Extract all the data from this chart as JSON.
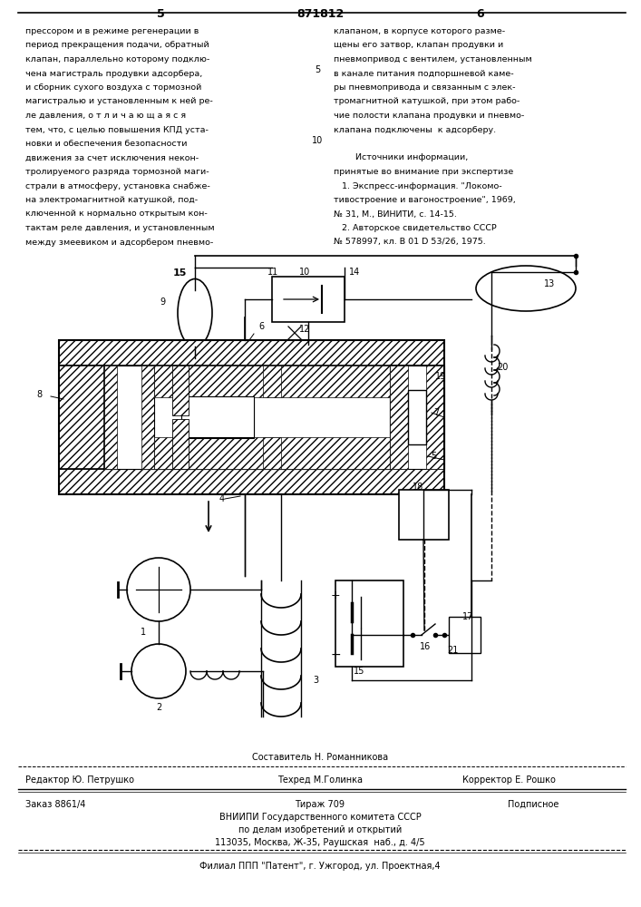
{
  "page_color": "#ffffff",
  "header_num_left": "5",
  "header_num_center": "871812",
  "header_num_right": "6",
  "col_left_text": [
    "прессором и в режиме регенерации в",
    "период прекращения подачи, обратный",
    "клапан, параллельно которому подклю-",
    "чена магистраль продувки адсорбера,",
    "и сборник сухого воздуха с тормозной",
    "магистралью и установленным к ней ре-",
    "ле давления, о т л и ч а ю щ а я с я",
    "тем, что, с целью повышения КПД уста-",
    "новки и обеспечения безопасности",
    "движения за счет исключения некон-",
    "тролируемого разряда тормозной маги-",
    "страли в атмосферу, установка снабже-",
    "на электромагнитной катушкой, под-",
    "ключенной к нормально открытым кон-",
    "тактам реле давления, и установленным",
    "между змеевиком и адсорбером пневмо-"
  ],
  "col_right_text": [
    "клапаном, в корпусе которого разме-",
    "щены его затвор, клапан продувки и",
    "пневмопривод с вентилем, установленным",
    "в канале питания подпоршневой каме-",
    "ры пневмопривода и связанным с элек-",
    "тромагнитной катушкой, при этом рабо-",
    "чие полости клапана продувки и пневмо-",
    "клапана подключены  к адсорберу.",
    "",
    "        Источники информации,",
    "принятые во внимание при экспертизе",
    "   1. Экспресс-информация. \"Локомо-",
    "тивостроение и вагоностроение\", 1969,",
    "№ 31, М., ВИНИТИ, с. 14-15.",
    "   2. Авторское свидетельство СССР",
    "№ 578997, кл. В 01 D 53/26, 1975."
  ],
  "footer_editor": "Редактор Ю. Петрушко",
  "footer_tech": "Техред М.Голинка",
  "footer_corrector": "Корректор Е. Рошко",
  "footer_order": "Заказ 8861/4",
  "footer_print": "Тираж 709",
  "footer_subscription": "Подписное",
  "footer_org1": "ВНИИПИ Государственного комитета СССР",
  "footer_org2": "по делам изобретений и открытий",
  "footer_addr": "113035, Москва, Ж-35, Раушская  наб., д. 4/5",
  "footer_branch": "Филиал ППП \"Патент\", г. Ужгород, ул. Проектная,4",
  "footer_composer": "Составитель Н. Романникова"
}
